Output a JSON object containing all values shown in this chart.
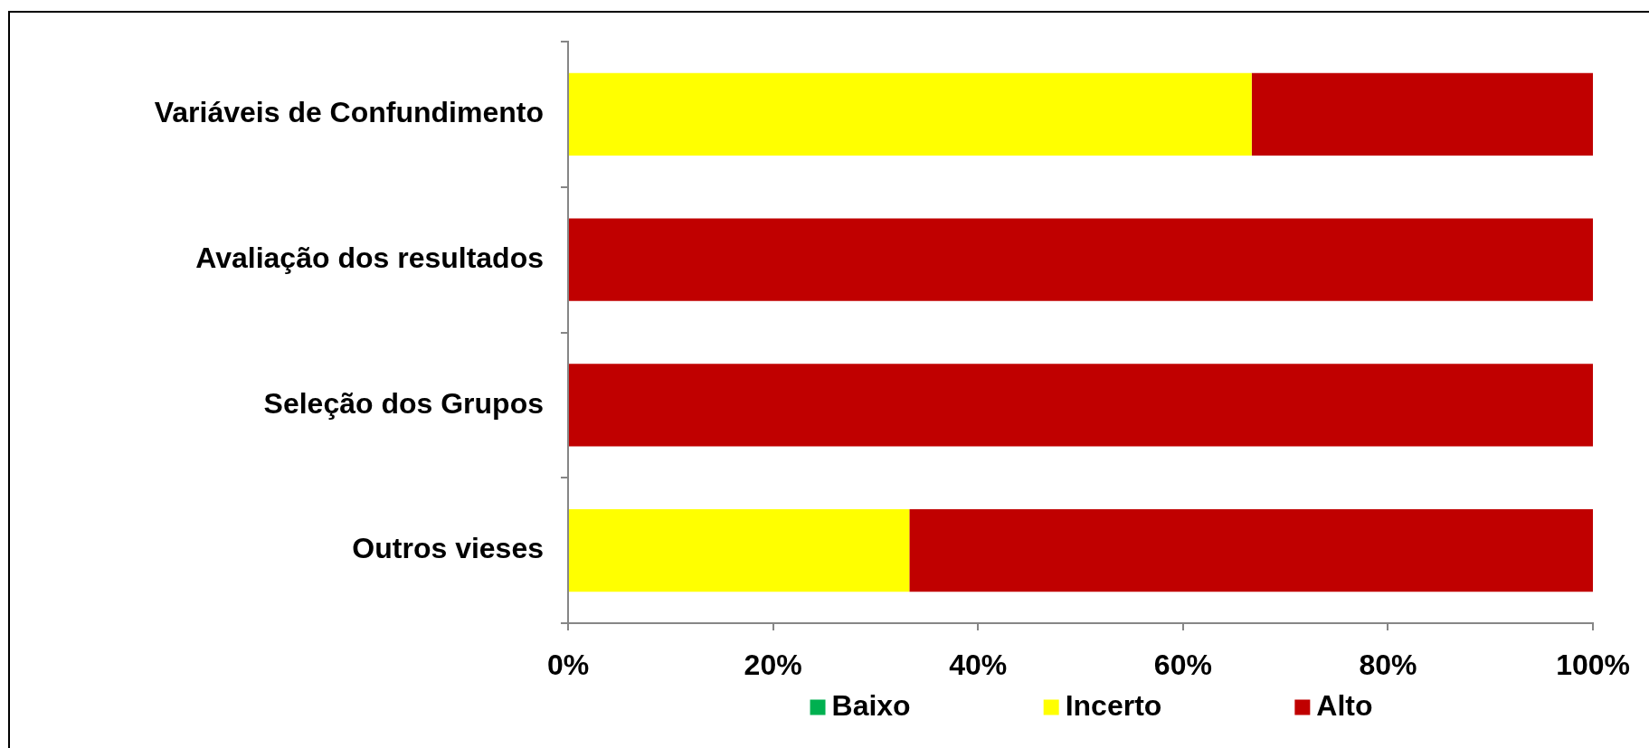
{
  "chart_data": {
    "type": "bar",
    "orientation": "horizontal",
    "stacked": true,
    "categories": [
      "Variáveis de Confundimento",
      "Avaliação dos resultados",
      "Seleção dos Grupos",
      "Outros vieses"
    ],
    "series": [
      {
        "name": "Baixo",
        "color": "#00b050",
        "values": [
          0,
          0,
          0,
          0
        ]
      },
      {
        "name": "Incerto",
        "color": "#ffff00",
        "values": [
          66.7,
          0,
          0,
          33.3
        ]
      },
      {
        "name": "Alto",
        "color": "#c00000",
        "values": [
          33.3,
          100,
          100,
          66.7
        ]
      }
    ],
    "xlim": [
      0,
      100
    ],
    "xticks": [
      {
        "value": 0,
        "label": "0%"
      },
      {
        "value": 20,
        "label": "20%"
      },
      {
        "value": 40,
        "label": "40%"
      },
      {
        "value": 60,
        "label": "60%"
      },
      {
        "value": 80,
        "label": "80%"
      },
      {
        "value": 100,
        "label": "100%"
      }
    ],
    "legend": "bottom"
  }
}
